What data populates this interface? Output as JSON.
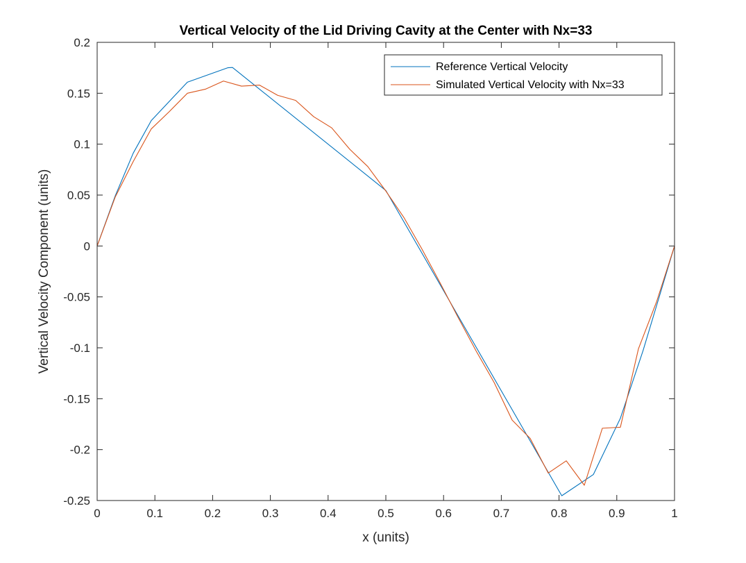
{
  "chart_data": {
    "type": "line",
    "title": "Vertical Velocity of the Lid Driving Cavity at the Center with Nx=33",
    "xlabel": "x (units)",
    "ylabel": "Vertical Velocity Component (units)",
    "xlim": [
      0,
      1
    ],
    "ylim": [
      -0.25,
      0.2
    ],
    "xticks": [
      0,
      0.1,
      0.2,
      0.3,
      0.4,
      0.5,
      0.6,
      0.7,
      0.8,
      0.9,
      1
    ],
    "xtick_labels": [
      "0",
      "0.1",
      "0.2",
      "0.3",
      "0.4",
      "0.5",
      "0.6",
      "0.7",
      "0.8",
      "0.9",
      "1"
    ],
    "yticks": [
      0.2,
      0.15,
      0.1,
      0.05,
      0,
      -0.05,
      -0.1,
      -0.15,
      -0.2,
      -0.25
    ],
    "ytick_labels": [
      "0.2",
      "0.15",
      "0.1",
      "0.05",
      "0",
      "-0.05",
      "-0.1",
      "-0.15",
      "-0.2",
      "-0.25"
    ],
    "grid": false,
    "legend_position": "top-right",
    "series": [
      {
        "name": "Reference Vertical Velocity",
        "color": "#0072BD",
        "x": [
          0,
          0.0313,
          0.0625,
          0.0938,
          0.1563,
          0.2266,
          0.2344,
          0.5,
          0.8047,
          0.8594,
          0.9063,
          0.9453,
          1
        ],
        "y": [
          0,
          0.0492,
          0.0912,
          0.1232,
          0.1609,
          0.1751,
          0.1753,
          0.0545,
          -0.2453,
          -0.2245,
          -0.1691,
          -0.1031,
          0
        ]
      },
      {
        "name": "Simulated Vertical Velocity with Nx=33",
        "color": "#D95319",
        "x": [
          0,
          0.03125,
          0.0625,
          0.09375,
          0.125,
          0.15625,
          0.1875,
          0.21875,
          0.25,
          0.28125,
          0.3125,
          0.34375,
          0.375,
          0.40625,
          0.4375,
          0.46875,
          0.5,
          0.53125,
          0.5625,
          0.59375,
          0.625,
          0.65625,
          0.6875,
          0.71875,
          0.75,
          0.78125,
          0.8125,
          0.84375,
          0.875,
          0.90625,
          0.9375,
          0.96875,
          1
        ],
        "y": [
          0,
          0.048,
          0.083,
          0.115,
          0.132,
          0.15,
          0.154,
          0.162,
          0.157,
          0.158,
          0.148,
          0.143,
          0.127,
          0.116,
          0.095,
          0.078,
          0.054,
          0.028,
          -0.003,
          -0.036,
          -0.07,
          -0.103,
          -0.134,
          -0.171,
          -0.189,
          -0.223,
          -0.211,
          -0.235,
          -0.179,
          -0.178,
          -0.101,
          -0.055,
          0
        ]
      }
    ]
  }
}
